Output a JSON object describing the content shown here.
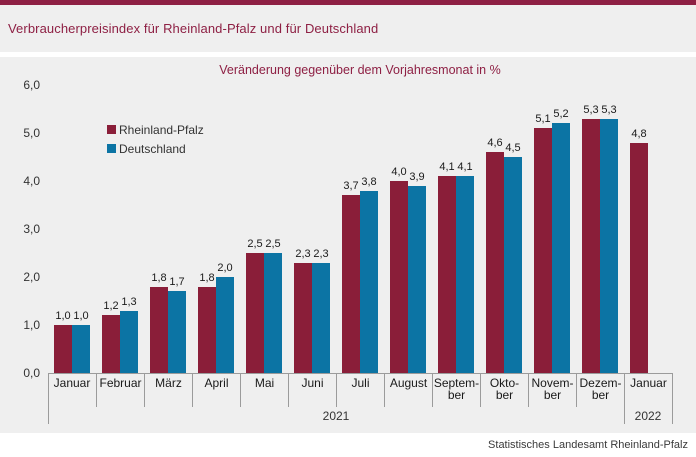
{
  "header": {
    "title": "Verbraucherpreisindex für Rheinland-Pfalz und für Deutschland"
  },
  "footer": {
    "source": "Statistisches Landesamt Rheinland-Pfalz"
  },
  "colors": {
    "accent_burgundy": "#8e2044",
    "series_rheinland_pfalz": "#8a1e39",
    "series_deutschland": "#0c74a4",
    "panel_background": "#efefef",
    "axis_gray": "#9b9b9b"
  },
  "chart_data": {
    "type": "bar",
    "title": "Verbraucherpreisindex für Rheinland-Pfalz und für Deutschland",
    "subtitle": "Veränderung gegenüber dem Vorjahresmonat in %",
    "grid": "off",
    "legend_position": "upper-left-inside",
    "categories": [
      "Januar",
      "Februar",
      "März",
      "April",
      "Mai",
      "Juni",
      "Juli",
      "August",
      "September",
      "Oktober",
      "November",
      "Dezember",
      "Januar"
    ],
    "category_label_lines": [
      [
        "Januar"
      ],
      [
        "Februar"
      ],
      [
        "März"
      ],
      [
        "April"
      ],
      [
        "Mai"
      ],
      [
        "Juni"
      ],
      [
        "Juli"
      ],
      [
        "August"
      ],
      [
        "Septem-",
        "ber"
      ],
      [
        "Okto-",
        "ber"
      ],
      [
        "Novem-",
        "ber"
      ],
      [
        "Dezem-",
        "ber"
      ],
      [
        "Januar"
      ]
    ],
    "year_groups": [
      {
        "label": "2021",
        "start": 0,
        "end": 11
      },
      {
        "label": "2022",
        "start": 12,
        "end": 12
      }
    ],
    "series": [
      {
        "name": "Rheinland-Pfalz",
        "color": "#8a1e39",
        "values": [
          1.0,
          1.2,
          1.8,
          1.8,
          2.5,
          2.3,
          3.7,
          4.0,
          4.1,
          4.6,
          5.1,
          5.3,
          4.8
        ],
        "labels": [
          "1,0",
          "1,2",
          "1,8",
          "1,8",
          "2,5",
          "2,3",
          "3,7",
          "4,0",
          "4,1",
          "4,6",
          "5,1",
          "5,3",
          "4,8"
        ]
      },
      {
        "name": "Deutschland",
        "color": "#0c74a4",
        "values": [
          1.0,
          1.3,
          1.7,
          2.0,
          2.5,
          2.3,
          3.8,
          3.9,
          4.1,
          4.5,
          5.2,
          5.3,
          null
        ],
        "labels": [
          "1,0",
          "1,3",
          "1,7",
          "2,0",
          "2,5",
          "2,3",
          "3,8",
          "3,9",
          "4,1",
          "4,5",
          "5,2",
          "5,3",
          null
        ]
      }
    ],
    "y_axis": {
      "min": 0,
      "max": 6,
      "step": 1,
      "tick_labels": [
        "0,0",
        "1,0",
        "2,0",
        "3,0",
        "4,0",
        "5,0",
        "6,0"
      ]
    }
  }
}
